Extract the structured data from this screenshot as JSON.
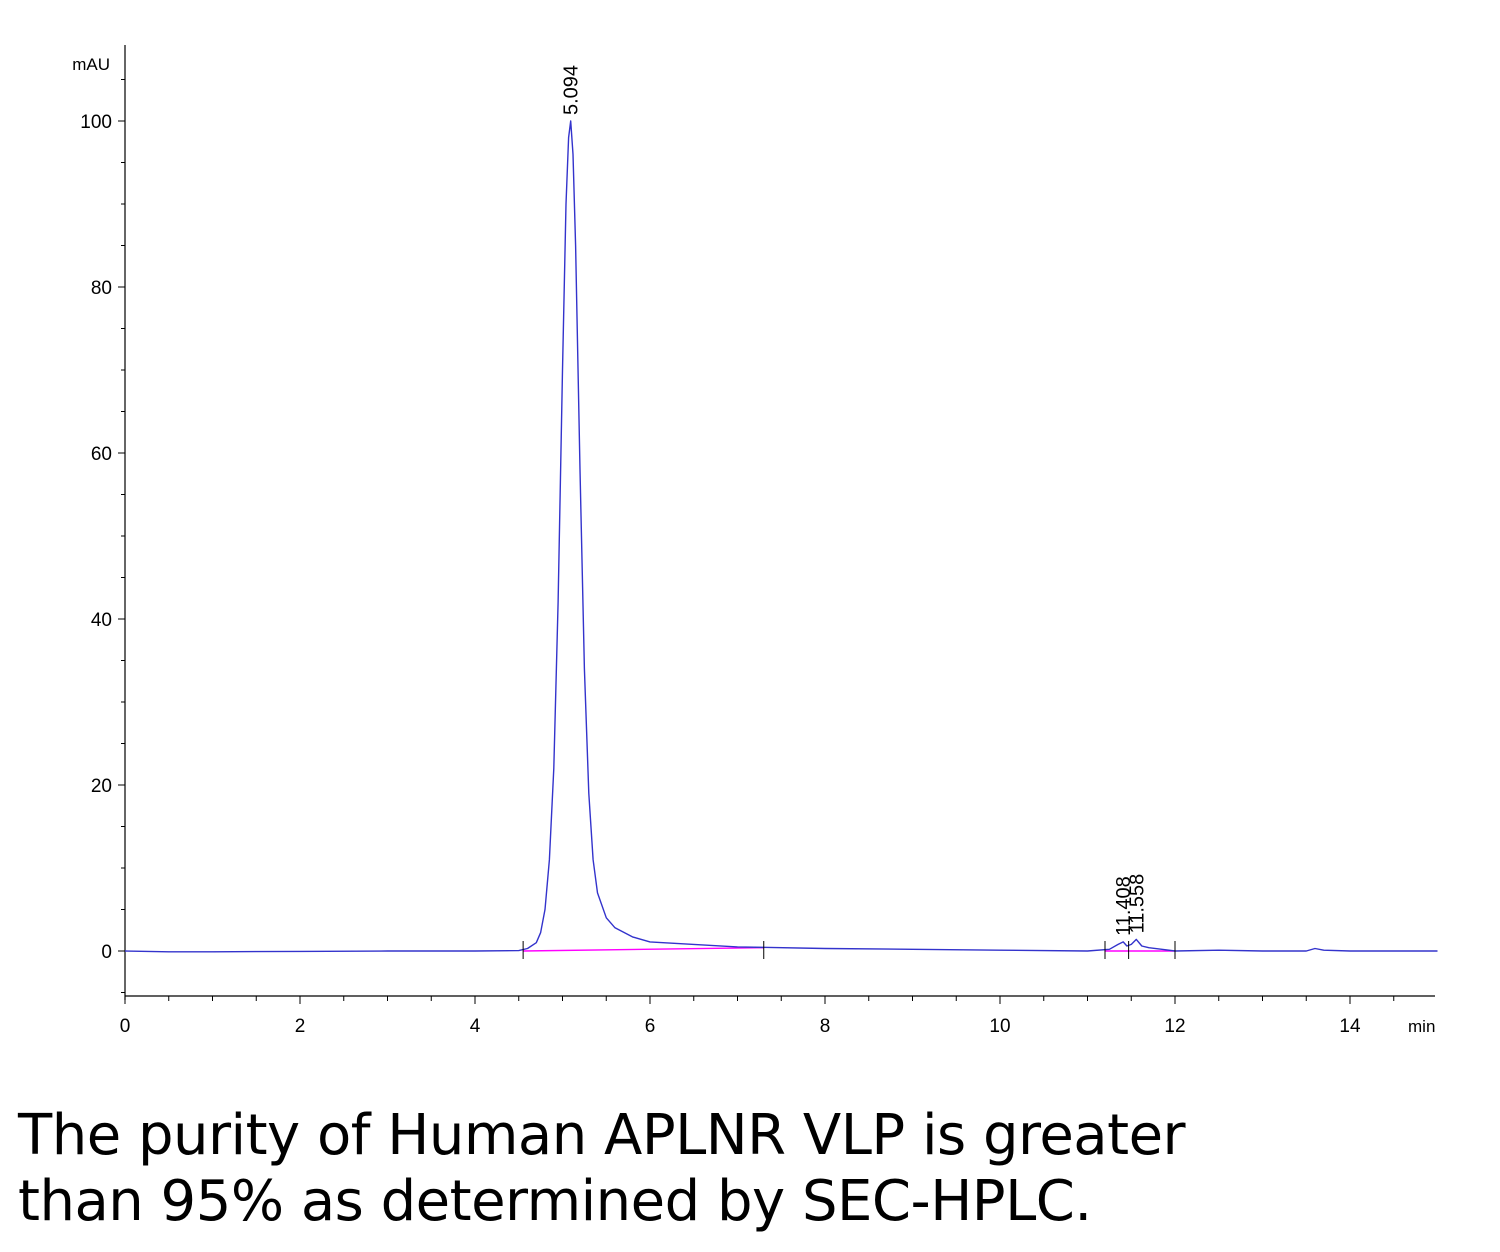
{
  "chart_data": {
    "type": "line",
    "x_unit": "min",
    "y_unit": "mAU",
    "xlim": [
      0,
      15
    ],
    "ylim": [
      -5,
      105
    ],
    "x_ticks": [
      0,
      2,
      4,
      6,
      8,
      10,
      12,
      14
    ],
    "x_tick_labels": [
      "0",
      "2",
      "4",
      "6",
      "8",
      "10",
      "12",
      "14"
    ],
    "y_ticks": [
      0,
      20,
      40,
      60,
      80,
      100
    ],
    "y_tick_labels": [
      "0",
      "20",
      "40",
      "60",
      "80",
      "100"
    ],
    "series": [
      {
        "color": "#3333cc",
        "x": [
          0,
          0.5,
          1.0,
          2.0,
          3.0,
          4.0,
          4.5,
          4.6,
          4.7,
          4.75,
          4.8,
          4.85,
          4.9,
          4.95,
          5.0,
          5.04,
          5.07,
          5.094,
          5.12,
          5.15,
          5.2,
          5.25,
          5.3,
          5.35,
          5.4,
          5.5,
          5.6,
          5.8,
          6.0,
          6.5,
          7.0,
          8.0,
          9.0,
          10.0,
          11.0,
          11.25,
          11.35,
          11.408,
          11.45,
          11.5,
          11.558,
          11.62,
          11.7,
          11.85,
          12.0,
          12.5,
          13.0,
          13.5,
          13.6,
          13.7,
          14.0,
          15.0
        ],
        "y": [
          0,
          -0.1,
          -0.1,
          -0.05,
          0,
          0,
          0.05,
          0.3,
          1.0,
          2.2,
          5.0,
          11,
          22,
          42,
          70,
          90,
          98,
          100,
          96,
          85,
          58,
          34,
          19,
          11,
          7,
          4,
          2.8,
          1.7,
          1.1,
          0.8,
          0.5,
          0.3,
          0.2,
          0.1,
          0,
          0.2,
          0.8,
          1.1,
          0.6,
          0.8,
          1.4,
          0.6,
          0.4,
          0.2,
          0,
          0.1,
          0,
          0,
          0.3,
          0.1,
          0,
          0
        ]
      }
    ],
    "baselines": [
      {
        "color": "#ff00ff",
        "x": [
          4.55,
          7.3
        ],
        "y": [
          0,
          0.4
        ]
      },
      {
        "color": "#ff00ff",
        "x": [
          11.2,
          12.0
        ],
        "y": [
          0,
          0
        ]
      }
    ],
    "peak_labels": [
      {
        "x": 5.094,
        "y": 100,
        "text": "5.094"
      },
      {
        "x": 11.408,
        "y": 1.1,
        "text": "11.408"
      },
      {
        "x": 11.558,
        "y": 1.4,
        "text": "11.558"
      }
    ],
    "integration_marks_x": [
      4.55,
      7.3,
      11.2,
      11.47,
      12.0
    ]
  },
  "caption": {
    "line1": "The purity of Human APLNR VLP is greater",
    "line2": "than 95% as determined by SEC-HPLC."
  }
}
